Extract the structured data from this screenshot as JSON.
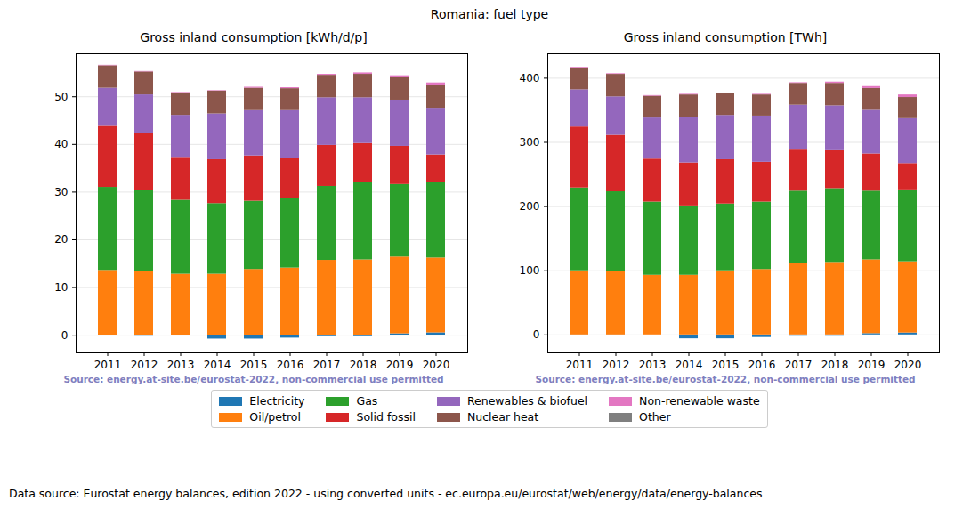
{
  "title": "Romania: fuel type",
  "footer": "Data source: Eurostat energy balances, edition 2022 - using converted units - ec.europa.eu/eurostat/web/energy/data/energy-balances",
  "chart_data": [
    {
      "type": "bar",
      "stacked": true,
      "grid": true,
      "legend": "bottom",
      "title": "Gross inland consumption [kWh/d/p]",
      "annotation": "Source: energy.at-site.be/eurostat-2022, non-commercial use permitted",
      "categories": [
        "2011",
        "2012",
        "2013",
        "2014",
        "2015",
        "2016",
        "2017",
        "2018",
        "2019",
        "2020"
      ],
      "ylim": [
        -3.7,
        59
      ],
      "yticks": [
        0,
        10,
        20,
        30,
        40,
        50
      ],
      "series": [
        {
          "name": "Electricity",
          "color": "#1f77b4",
          "values": [
            -0.1,
            -0.2,
            -0.1,
            -0.8,
            -0.8,
            -0.6,
            -0.3,
            -0.3,
            0.3,
            0.5
          ]
        },
        {
          "name": "Oil/petrol",
          "color": "#ff7f0e",
          "values": [
            13.6,
            13.3,
            12.8,
            12.8,
            13.8,
            14.1,
            15.7,
            15.8,
            16.1,
            15.7
          ]
        },
        {
          "name": "Gas",
          "color": "#2ca02c",
          "values": [
            17.4,
            17.0,
            15.5,
            14.8,
            14.3,
            14.5,
            15.5,
            16.3,
            15.2,
            15.9
          ]
        },
        {
          "name": "Solid fossil",
          "color": "#d62728",
          "values": [
            12.8,
            12.0,
            9.0,
            9.2,
            9.5,
            8.5,
            8.6,
            8.1,
            8.0,
            5.7
          ]
        },
        {
          "name": "Renewables & biofuel",
          "color": "#9467bd",
          "values": [
            8.0,
            8.1,
            8.8,
            9.6,
            9.5,
            10.0,
            10.0,
            9.6,
            9.7,
            9.8
          ]
        },
        {
          "name": "Nuclear heat",
          "color": "#8c564b",
          "values": [
            4.7,
            4.8,
            4.7,
            4.8,
            4.7,
            4.6,
            4.7,
            4.9,
            4.7,
            4.7
          ]
        },
        {
          "name": "Non-renewable waste",
          "color": "#e377c2",
          "values": [
            0.1,
            0.1,
            0.1,
            0.1,
            0.2,
            0.2,
            0.2,
            0.3,
            0.4,
            0.6
          ]
        },
        {
          "name": "Other",
          "color": "#7f7f7f",
          "values": [
            0,
            0,
            0,
            0,
            0,
            0,
            0,
            0,
            0,
            0
          ]
        }
      ]
    },
    {
      "type": "bar",
      "stacked": true,
      "grid": true,
      "legend": "bottom",
      "title": "Gross inland consumption [TWh]",
      "annotation": "Source: energy.at-site.be/eurostat-2022, non-commercial use permitted",
      "categories": [
        "2011",
        "2012",
        "2013",
        "2014",
        "2015",
        "2016",
        "2017",
        "2018",
        "2019",
        "2020"
      ],
      "ylim": [
        -28,
        438
      ],
      "yticks": [
        0,
        100,
        200,
        300,
        400
      ],
      "series": [
        {
          "name": "Electricity",
          "color": "#1f77b4",
          "values": [
            -1,
            -1,
            0,
            -6,
            -6,
            -4,
            -2,
            -2,
            2,
            3
          ]
        },
        {
          "name": "Oil/petrol",
          "color": "#ff7f0e",
          "values": [
            100,
            99,
            93,
            93,
            100,
            102,
            112,
            113,
            115,
            111
          ]
        },
        {
          "name": "Gas",
          "color": "#2ca02c",
          "values": [
            129,
            124,
            114,
            108,
            104,
            105,
            112,
            115,
            107,
            112
          ]
        },
        {
          "name": "Solid fossil",
          "color": "#d62728",
          "values": [
            95,
            88,
            67,
            67,
            69,
            62,
            64,
            59,
            58,
            41
          ]
        },
        {
          "name": "Renewables & biofuel",
          "color": "#9467bd",
          "values": [
            58,
            60,
            64,
            71,
            69,
            72,
            70,
            70,
            68,
            70
          ]
        },
        {
          "name": "Nuclear heat",
          "color": "#8c564b",
          "values": [
            34,
            35,
            34,
            35,
            34,
            33,
            34,
            35,
            34,
            33
          ]
        },
        {
          "name": "Non-renewable waste",
          "color": "#e377c2",
          "values": [
            1,
            1,
            1,
            1,
            1,
            1,
            1,
            2,
            3,
            4
          ]
        },
        {
          "name": "Other",
          "color": "#7f7f7f",
          "values": [
            0,
            0,
            0,
            0,
            0,
            0,
            0,
            0,
            0,
            0
          ]
        }
      ]
    }
  ]
}
